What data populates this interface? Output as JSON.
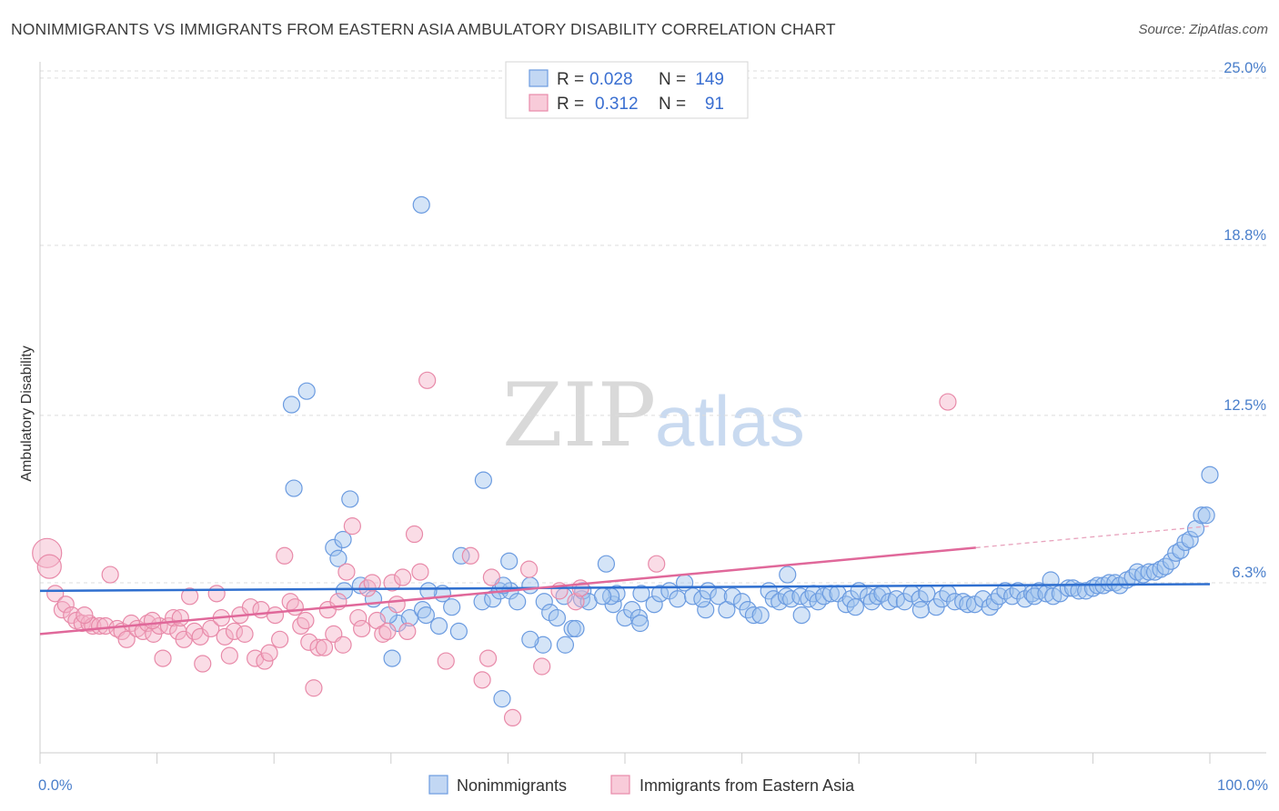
{
  "header": {
    "title": "NONIMMIGRANTS VS IMMIGRANTS FROM EASTERN ASIA AMBULATORY DISABILITY CORRELATION CHART",
    "source": "Source: ZipAtlas.com"
  },
  "watermark": {
    "part1": "ZIP",
    "part2": "atlas"
  },
  "legend": {
    "rows": [
      {
        "r_label": "R =",
        "r_value": "0.028",
        "n_label": "N =",
        "n_value": "149",
        "color": "#6b9be0"
      },
      {
        "r_label": "R =",
        "r_value": "0.312",
        "n_label": "N =",
        "n_value": "91",
        "color": "#e88aa9"
      }
    ]
  },
  "bottom_legend": [
    {
      "label": "Nonimmigrants",
      "color": "#6b9be0"
    },
    {
      "label": "Immigrants from Eastern Asia",
      "color": "#e88aa9"
    }
  ],
  "chart_data": {
    "type": "scatter",
    "title": "NONIMMIGRANTS VS IMMIGRANTS FROM EASTERN ASIA AMBULATORY DISABILITY CORRELATION CHART",
    "xlabel": "",
    "ylabel": "Ambulatory Disability",
    "x_tick_labels": [
      "0.0%",
      "100.0%"
    ],
    "y_tick_labels": [
      "6.3%",
      "12.5%",
      "18.8%",
      "25.0%"
    ],
    "y_ticks": [
      6.3,
      12.5,
      18.8,
      25.0
    ],
    "xlim": [
      0,
      100
    ],
    "ylim": [
      0,
      25.6
    ],
    "grid": true,
    "legend_position": "top-center",
    "series": [
      {
        "name": "Nonimmigrants",
        "color": "#6b9be0",
        "r": 0.028,
        "n": 149,
        "trend": {
          "x0": 0,
          "y0": 6.0,
          "x1": 100,
          "y1": 6.25
        },
        "points": [
          [
            21.5,
            12.9
          ],
          [
            22.8,
            13.4
          ],
          [
            21.7,
            9.8
          ],
          [
            26.5,
            9.4
          ],
          [
            32.6,
            20.3
          ],
          [
            37.9,
            10.1
          ],
          [
            25.1,
            7.6
          ],
          [
            25.5,
            7.2
          ],
          [
            25.9,
            7.9
          ],
          [
            27.4,
            6.2
          ],
          [
            26.0,
            6.0
          ],
          [
            28.5,
            5.7
          ],
          [
            30.6,
            4.8
          ],
          [
            31.6,
            5.0
          ],
          [
            30.1,
            3.5
          ],
          [
            29.8,
            5.1
          ],
          [
            34.1,
            4.7
          ],
          [
            34.4,
            5.9
          ],
          [
            35.2,
            5.4
          ],
          [
            35.8,
            4.5
          ],
          [
            36.0,
            7.3
          ],
          [
            33.2,
            6.0
          ],
          [
            32.7,
            5.3
          ],
          [
            33.0,
            5.1
          ],
          [
            37.8,
            5.6
          ],
          [
            38.7,
            5.7
          ],
          [
            39.3,
            6.0
          ],
          [
            40.2,
            6.0
          ],
          [
            39.6,
            6.2
          ],
          [
            40.1,
            7.1
          ],
          [
            40.8,
            5.6
          ],
          [
            41.9,
            6.2
          ],
          [
            43.1,
            5.6
          ],
          [
            43.6,
            5.2
          ],
          [
            43.0,
            4.0
          ],
          [
            44.2,
            5.0
          ],
          [
            44.8,
            5.8
          ],
          [
            44.9,
            4.0
          ],
          [
            45.5,
            4.6
          ],
          [
            45.8,
            4.6
          ],
          [
            46.3,
            5.7
          ],
          [
            46.4,
            6.0
          ],
          [
            46.9,
            5.6
          ],
          [
            48.4,
            7.0
          ],
          [
            49.0,
            5.5
          ],
          [
            49.3,
            5.9
          ],
          [
            48.8,
            5.8
          ],
          [
            48.1,
            5.8
          ],
          [
            41.9,
            4.2
          ],
          [
            39.5,
            2.0
          ],
          [
            50.0,
            5.0
          ],
          [
            50.6,
            5.3
          ],
          [
            51.2,
            5.0
          ],
          [
            51.4,
            5.9
          ],
          [
            52.5,
            5.5
          ],
          [
            53.0,
            5.9
          ],
          [
            53.8,
            6.0
          ],
          [
            54.5,
            5.7
          ],
          [
            55.1,
            6.3
          ],
          [
            55.8,
            5.8
          ],
          [
            56.9,
            5.3
          ],
          [
            56.6,
            5.7
          ],
          [
            57.1,
            6.0
          ],
          [
            58.0,
            5.8
          ],
          [
            58.7,
            5.3
          ],
          [
            59.2,
            5.8
          ],
          [
            60.0,
            5.6
          ],
          [
            60.5,
            5.3
          ],
          [
            61.0,
            5.1
          ],
          [
            61.6,
            5.1
          ],
          [
            62.3,
            6.0
          ],
          [
            62.7,
            5.7
          ],
          [
            63.2,
            5.6
          ],
          [
            63.8,
            5.8
          ],
          [
            64.2,
            5.7
          ],
          [
            65.0,
            5.8
          ],
          [
            65.7,
            5.7
          ],
          [
            66.1,
            5.9
          ],
          [
            63.9,
            6.6
          ],
          [
            65.1,
            5.1
          ],
          [
            66.5,
            5.6
          ],
          [
            67.0,
            5.8
          ],
          [
            67.6,
            5.9
          ],
          [
            68.2,
            5.9
          ],
          [
            68.9,
            5.5
          ],
          [
            69.3,
            5.7
          ],
          [
            70.0,
            6.0
          ],
          [
            70.8,
            5.8
          ],
          [
            71.1,
            5.6
          ],
          [
            71.6,
            5.8
          ],
          [
            72.0,
            5.9
          ],
          [
            72.6,
            5.6
          ],
          [
            73.2,
            5.7
          ],
          [
            73.9,
            5.6
          ],
          [
            74.5,
            5.9
          ],
          [
            75.2,
            5.7
          ],
          [
            75.8,
            5.9
          ],
          [
            76.6,
            5.4
          ],
          [
            77.1,
            5.7
          ],
          [
            77.6,
            5.9
          ],
          [
            78.2,
            5.6
          ],
          [
            78.9,
            5.6
          ],
          [
            79.3,
            5.5
          ],
          [
            79.9,
            5.5
          ],
          [
            80.6,
            5.7
          ],
          [
            81.2,
            5.4
          ],
          [
            81.6,
            5.6
          ],
          [
            82.0,
            5.8
          ],
          [
            82.5,
            6.0
          ],
          [
            83.1,
            5.8
          ],
          [
            83.6,
            6.0
          ],
          [
            84.2,
            5.7
          ],
          [
            84.8,
            5.9
          ],
          [
            85.4,
            6.0
          ],
          [
            85.0,
            5.8
          ],
          [
            86.0,
            5.9
          ],
          [
            86.6,
            5.8
          ],
          [
            87.2,
            5.9
          ],
          [
            87.9,
            6.1
          ],
          [
            88.3,
            6.1
          ],
          [
            88.8,
            6.0
          ],
          [
            89.4,
            6.0
          ],
          [
            90.0,
            6.1
          ],
          [
            90.4,
            6.2
          ],
          [
            90.9,
            6.2
          ],
          [
            91.4,
            6.3
          ],
          [
            91.9,
            6.3
          ],
          [
            92.3,
            6.2
          ],
          [
            92.9,
            6.4
          ],
          [
            93.4,
            6.5
          ],
          [
            93.8,
            6.7
          ],
          [
            94.3,
            6.6
          ],
          [
            94.8,
            6.7
          ],
          [
            95.3,
            6.7
          ],
          [
            95.8,
            6.8
          ],
          [
            96.2,
            6.9
          ],
          [
            96.7,
            7.1
          ],
          [
            97.1,
            7.4
          ],
          [
            97.5,
            7.5
          ],
          [
            97.9,
            7.8
          ],
          [
            98.3,
            7.9
          ],
          [
            98.8,
            8.3
          ],
          [
            99.3,
            8.8
          ],
          [
            99.7,
            8.8
          ],
          [
            100.0,
            10.3
          ],
          [
            86.4,
            6.4
          ],
          [
            51.3,
            4.8
          ],
          [
            69.7,
            5.4
          ],
          [
            75.3,
            5.3
          ]
        ]
      },
      {
        "name": "Immigrants from Eastern Asia",
        "color": "#e88aa9",
        "r": 0.312,
        "n": 91,
        "trend": {
          "x0": 0,
          "y0": 4.4,
          "x1": 80,
          "y1": 7.6,
          "dash_to": {
            "x": 100,
            "y": 8.4
          }
        },
        "points": [
          [
            0.6,
            7.4
          ],
          [
            0.8,
            6.9
          ],
          [
            1.3,
            5.9
          ],
          [
            1.9,
            5.3
          ],
          [
            2.2,
            5.5
          ],
          [
            2.7,
            5.1
          ],
          [
            3.1,
            4.9
          ],
          [
            3.6,
            4.8
          ],
          [
            4.2,
            4.8
          ],
          [
            4.5,
            4.7
          ],
          [
            5.1,
            4.7
          ],
          [
            5.6,
            4.7
          ],
          [
            6.0,
            6.6
          ],
          [
            6.6,
            4.6
          ],
          [
            7.0,
            4.5
          ],
          [
            7.4,
            4.2
          ],
          [
            7.8,
            4.8
          ],
          [
            8.3,
            4.6
          ],
          [
            8.8,
            4.5
          ],
          [
            9.2,
            4.8
          ],
          [
            9.7,
            4.4
          ],
          [
            10.2,
            4.7
          ],
          [
            10.5,
            3.5
          ],
          [
            11.0,
            4.7
          ],
          [
            11.4,
            5.0
          ],
          [
            11.8,
            4.5
          ],
          [
            12.3,
            4.2
          ],
          [
            12.8,
            5.8
          ],
          [
            13.2,
            4.5
          ],
          [
            13.7,
            4.3
          ],
          [
            13.9,
            3.3
          ],
          [
            14.6,
            4.6
          ],
          [
            15.1,
            5.9
          ],
          [
            15.5,
            5.0
          ],
          [
            15.8,
            4.3
          ],
          [
            16.2,
            3.6
          ],
          [
            16.6,
            4.5
          ],
          [
            17.1,
            5.1
          ],
          [
            17.5,
            4.4
          ],
          [
            18.0,
            5.4
          ],
          [
            18.4,
            3.5
          ],
          [
            18.9,
            5.3
          ],
          [
            19.2,
            3.4
          ],
          [
            19.6,
            3.7
          ],
          [
            20.1,
            5.1
          ],
          [
            20.5,
            4.2
          ],
          [
            20.9,
            7.3
          ],
          [
            21.4,
            5.6
          ],
          [
            21.8,
            5.4
          ],
          [
            22.3,
            4.7
          ],
          [
            22.7,
            4.9
          ],
          [
            23.0,
            4.1
          ],
          [
            23.4,
            2.4
          ],
          [
            23.8,
            3.9
          ],
          [
            24.3,
            3.9
          ],
          [
            24.6,
            5.3
          ],
          [
            25.1,
            4.4
          ],
          [
            25.5,
            5.6
          ],
          [
            25.9,
            4.0
          ],
          [
            26.2,
            6.7
          ],
          [
            26.7,
            8.4
          ],
          [
            27.2,
            5.0
          ],
          [
            27.5,
            4.6
          ],
          [
            28.0,
            6.1
          ],
          [
            28.4,
            6.3
          ],
          [
            28.8,
            4.9
          ],
          [
            29.3,
            4.4
          ],
          [
            29.7,
            4.5
          ],
          [
            30.1,
            6.3
          ],
          [
            30.5,
            5.5
          ],
          [
            31.0,
            6.5
          ],
          [
            31.4,
            4.5
          ],
          [
            32.0,
            8.1
          ],
          [
            32.5,
            6.7
          ],
          [
            33.1,
            13.8
          ],
          [
            34.7,
            3.4
          ],
          [
            36.8,
            7.3
          ],
          [
            37.8,
            2.7
          ],
          [
            38.3,
            3.5
          ],
          [
            38.6,
            6.5
          ],
          [
            40.4,
            1.3
          ],
          [
            41.8,
            6.8
          ],
          [
            42.9,
            3.2
          ],
          [
            44.4,
            6.0
          ],
          [
            45.8,
            5.6
          ],
          [
            46.2,
            6.1
          ],
          [
            52.7,
            7.0
          ],
          [
            77.6,
            13.0
          ],
          [
            3.8,
            5.1
          ],
          [
            9.6,
            4.9
          ],
          [
            12.0,
            5.0
          ]
        ]
      }
    ]
  }
}
